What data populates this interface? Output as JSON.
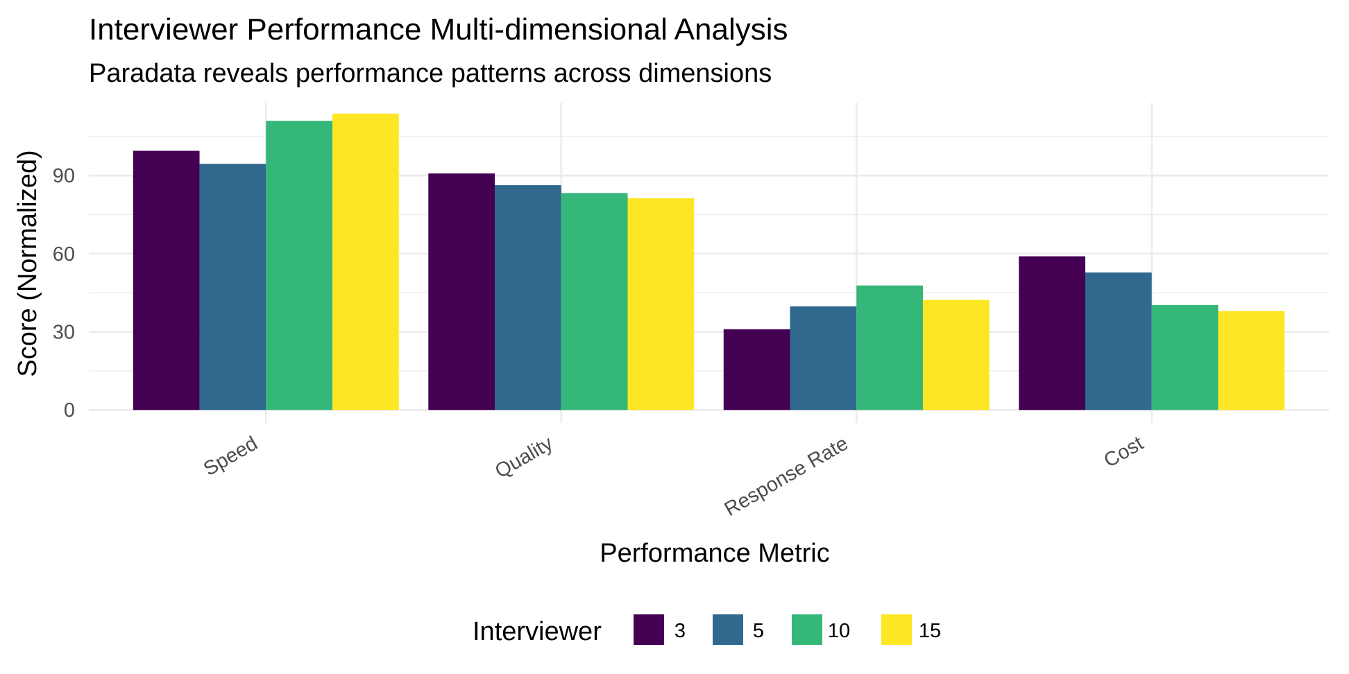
{
  "chart_data": {
    "type": "bar",
    "title": "Interviewer Performance Multi-dimensional Analysis",
    "subtitle": "Paradata reveals performance patterns across dimensions",
    "xlabel": "Performance Metric",
    "ylabel": "Score (Normalized)",
    "categories": [
      "Speed",
      "Quality",
      "Response Rate",
      "Cost"
    ],
    "yticks": [
      0,
      30,
      60,
      90
    ],
    "ylim": [
      -5,
      118
    ],
    "grid": true,
    "legend": {
      "title": "Interviewer",
      "position": "bottom"
    },
    "series": [
      {
        "name": "3",
        "color": "#440154",
        "values": [
          99.5,
          90.8,
          31.0,
          59.0
        ]
      },
      {
        "name": "5",
        "color": "#31688E",
        "values": [
          94.5,
          86.3,
          39.8,
          52.8
        ]
      },
      {
        "name": "10",
        "color": "#35B779",
        "values": [
          111.0,
          83.3,
          47.8,
          40.3
        ]
      },
      {
        "name": "15",
        "color": "#FDE725",
        "values": [
          113.8,
          81.3,
          42.3,
          38.0
        ]
      }
    ]
  }
}
